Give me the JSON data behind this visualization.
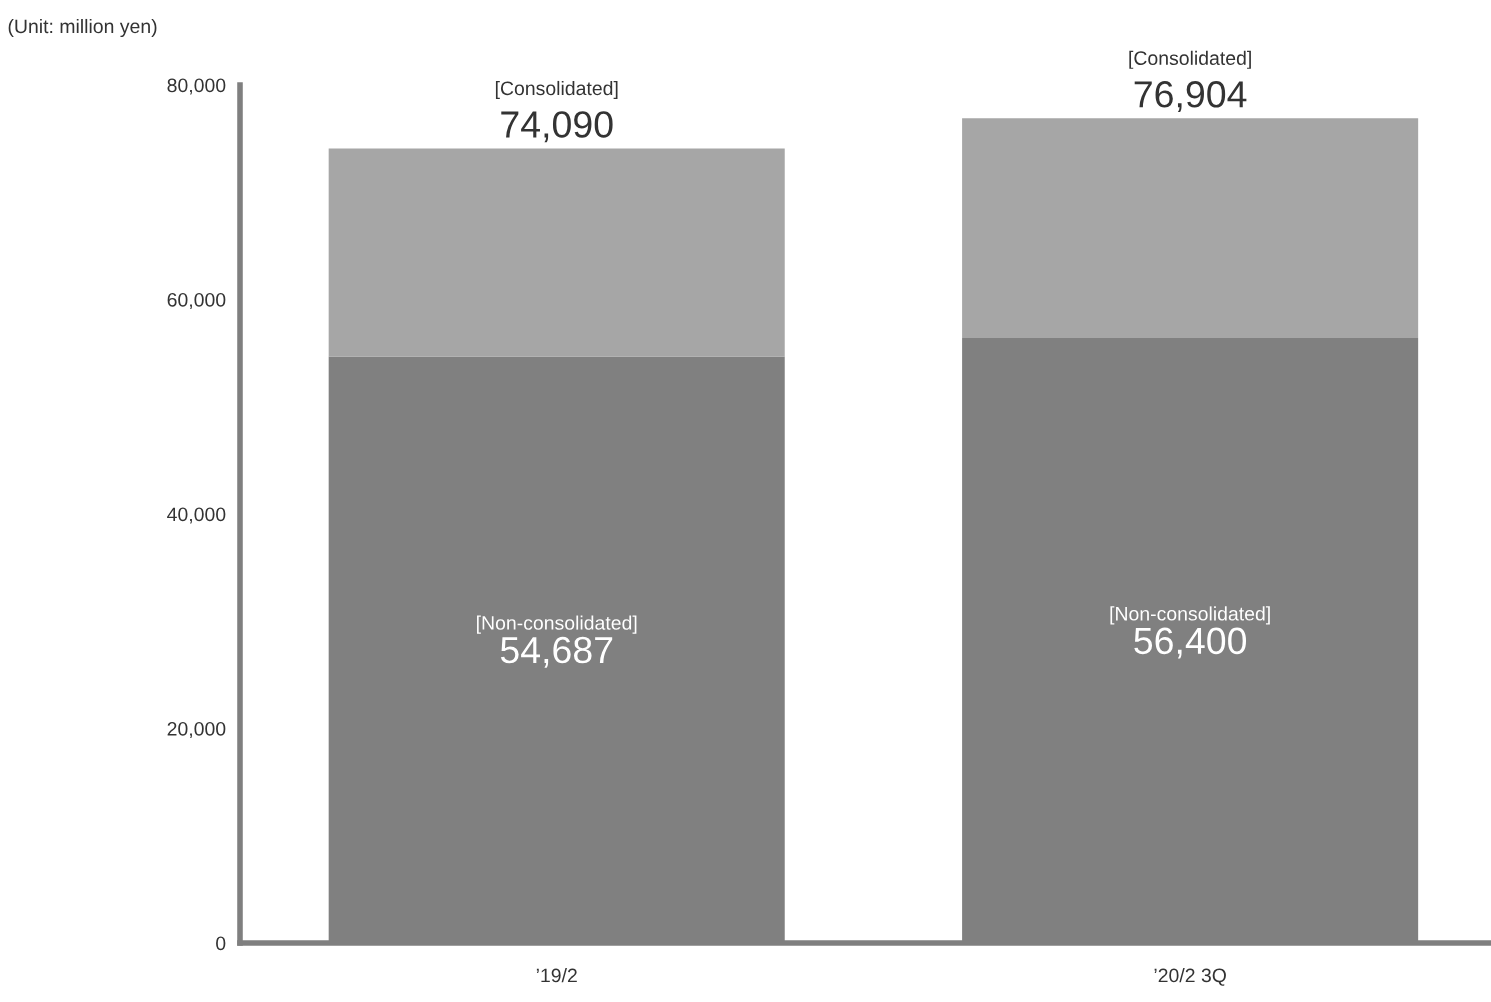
{
  "chart_data": {
    "type": "bar",
    "stacked": true,
    "ylabel": "(Unit: million yen)",
    "categories": [
      "’19/2",
      "’20/2 3Q"
    ],
    "series": [
      {
        "name": "[Non-consolidated]",
        "color": "#808080",
        "values": [
          54687,
          56400
        ],
        "value_labels": [
          "54,687",
          "56,400"
        ]
      },
      {
        "name": "[Consolidated]",
        "color": "#a6a6a6",
        "values": [
          19403,
          20504
        ]
      }
    ],
    "totals": [
      "74,090",
      "76,904"
    ],
    "ylim": [
      0,
      80000
    ],
    "yticks": [
      {
        "value": 0,
        "label": "0"
      },
      {
        "value": 20000,
        "label": "20,000"
      },
      {
        "value": 40000,
        "label": "40,000"
      },
      {
        "value": 60000,
        "label": "60,000"
      },
      {
        "value": 80000,
        "label": "80,000"
      }
    ],
    "grid": false,
    "legend": false
  }
}
